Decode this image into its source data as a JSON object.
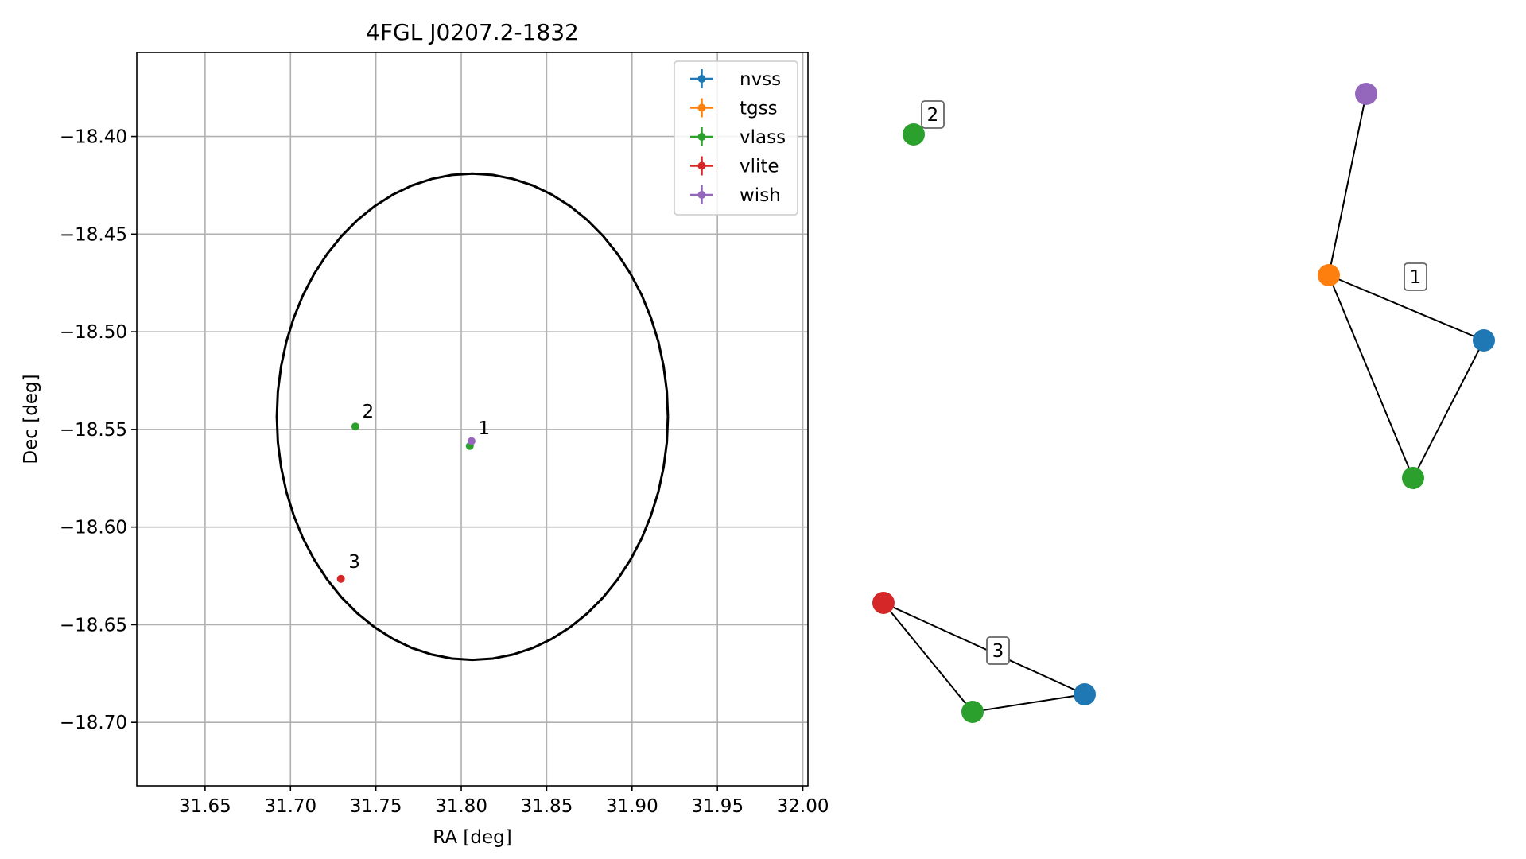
{
  "chart_data": [
    {
      "type": "scatter",
      "title": "4FGL J0207.2-1832",
      "xlabel": "RA [deg]",
      "ylabel": "Dec [deg]",
      "xlim": [
        31.61,
        32.003
      ],
      "ylim": [
        -18.7325,
        -18.357
      ],
      "xticks": [
        "31.65",
        "31.70",
        "31.75",
        "31.80",
        "31.85",
        "31.90",
        "31.95",
        "32.00"
      ],
      "yticks": [
        "−18.40",
        "−18.45",
        "−18.50",
        "−18.55",
        "−18.60",
        "−18.65",
        "−18.70"
      ],
      "grid": true,
      "legend_position": "top-right",
      "series": [
        {
          "name": "nvss",
          "color": "#1f77b4",
          "points": []
        },
        {
          "name": "tgss",
          "color": "#ff7f0e",
          "points": []
        },
        {
          "name": "vlass",
          "color": "#2ca02c",
          "points": [
            [
              31.738,
              -18.5485
            ],
            [
              31.805,
              -18.5585
            ]
          ]
        },
        {
          "name": "vlite",
          "color": "#d62728",
          "points": [
            [
              31.7295,
              -18.6265
            ]
          ]
        },
        {
          "name": "wish",
          "color": "#9467bd",
          "points": [
            [
              31.806,
              -18.556
            ]
          ]
        }
      ],
      "ellipse": {
        "center": [
          31.8065,
          -18.5435
        ],
        "semi_axis_ra": 0.1145,
        "semi_axis_dec": 0.1245
      },
      "point_labels": [
        {
          "text": "1",
          "ra": 31.81,
          "dec": -18.5525
        },
        {
          "text": "2",
          "ra": 31.742,
          "dec": -18.544
        },
        {
          "text": "3",
          "ra": 31.734,
          "dec": -18.621
        }
      ]
    },
    {
      "type": "network",
      "nodes": [
        {
          "id": "c1-wish",
          "series": "wish",
          "color": "#9467bd"
        },
        {
          "id": "c1-tgss",
          "series": "tgss",
          "color": "#ff7f0e"
        },
        {
          "id": "c1-nvss",
          "series": "nvss",
          "color": "#1f77b4"
        },
        {
          "id": "c1-vlass",
          "series": "vlass",
          "color": "#2ca02c"
        },
        {
          "id": "c2-vlass",
          "series": "vlass",
          "color": "#2ca02c"
        },
        {
          "id": "c3-vlite",
          "series": "vlite",
          "color": "#d62728"
        },
        {
          "id": "c3-vlass",
          "series": "vlass",
          "color": "#2ca02c"
        },
        {
          "id": "c3-nvss",
          "series": "nvss",
          "color": "#1f77b4"
        }
      ],
      "edges": [
        [
          "c1-wish",
          "c1-tgss"
        ],
        [
          "c1-tgss",
          "c1-nvss"
        ],
        [
          "c1-tgss",
          "c1-vlass"
        ],
        [
          "c1-nvss",
          "c1-vlass"
        ],
        [
          "c3-vlite",
          "c3-nvss"
        ],
        [
          "c3-vlite",
          "c3-vlass"
        ],
        [
          "c3-vlass",
          "c3-nvss"
        ]
      ],
      "cluster_labels": [
        "1",
        "2",
        "3"
      ]
    }
  ]
}
